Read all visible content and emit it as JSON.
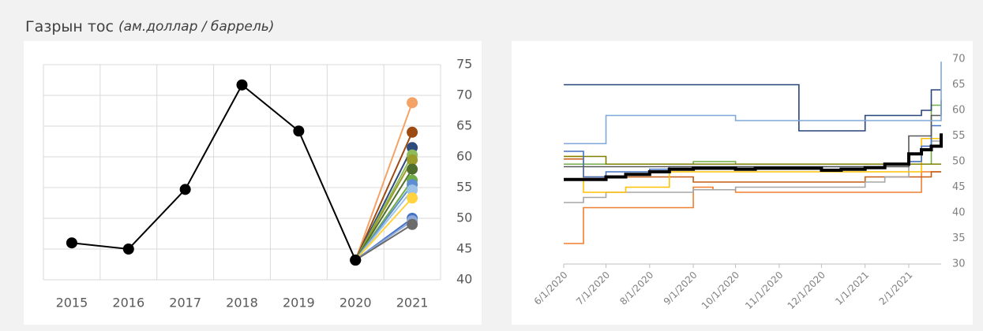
{
  "header": {
    "title": "Газрын тос",
    "unit": "(ам.доллар / баррель)"
  },
  "chart_data": [
    {
      "type": "line",
      "categories": [
        "2015",
        "2016",
        "2017",
        "2018",
        "2019",
        "2020",
        "2021"
      ],
      "ylim": [
        40,
        75
      ],
      "yticks": [
        40,
        45,
        50,
        55,
        60,
        65,
        70,
        75
      ],
      "grid": true,
      "series": [
        {
          "color": "#000000",
          "values": [
            46,
            45,
            54.7,
            71.7,
            64.2,
            43.2,
            null
          ]
        },
        {
          "color": "#f4a266",
          "values": [
            null,
            null,
            null,
            null,
            null,
            43.2,
            68.8
          ]
        },
        {
          "color": "#9c4a12",
          "values": [
            null,
            null,
            null,
            null,
            null,
            43.2,
            64
          ]
        },
        {
          "color": "#2f4b7c",
          "values": [
            null,
            null,
            null,
            null,
            null,
            43.2,
            61.5
          ]
        },
        {
          "color": "#8dbb5a",
          "values": [
            null,
            null,
            null,
            null,
            null,
            43.2,
            60.3
          ]
        },
        {
          "color": "#9c9c2a",
          "values": [
            null,
            null,
            null,
            null,
            null,
            43.2,
            59.5
          ]
        },
        {
          "color": "#4e6e2e",
          "values": [
            null,
            null,
            null,
            null,
            null,
            43.2,
            58
          ]
        },
        {
          "color": "#6fae44",
          "values": [
            null,
            null,
            null,
            null,
            null,
            43.2,
            56.2
          ]
        },
        {
          "color": "#5b8fd1",
          "values": [
            null,
            null,
            null,
            null,
            null,
            43.2,
            55.5
          ]
        },
        {
          "color": "#9dc3e6",
          "values": [
            null,
            null,
            null,
            null,
            null,
            43.2,
            54.6
          ]
        },
        {
          "color": "#ffd33f",
          "values": [
            null,
            null,
            null,
            null,
            null,
            43.2,
            53.3
          ]
        },
        {
          "color": "#4472c4",
          "values": [
            null,
            null,
            null,
            null,
            null,
            43.2,
            50
          ]
        },
        {
          "color": "#8da9db",
          "values": [
            null,
            null,
            null,
            null,
            null,
            43.2,
            49.6
          ]
        },
        {
          "color": "#6b6b6b",
          "values": [
            null,
            null,
            null,
            null,
            null,
            43.2,
            49
          ]
        }
      ]
    },
    {
      "type": "step",
      "xlim": [
        "6/1/2020",
        "2/24/2021"
      ],
      "xticks": [
        "6/1/2020",
        "7/1/2020",
        "8/1/2020",
        "9/1/2020",
        "10/1/2020",
        "11/1/2020",
        "12/1/2020",
        "1/1/2021",
        "2/1/2021"
      ],
      "ylim": [
        30,
        70
      ],
      "yticks": [
        30,
        35,
        40,
        45,
        50,
        55,
        60,
        65,
        70
      ],
      "x": [
        "6/1/2020",
        "6/15/2020",
        "7/1/2020",
        "7/15/2020",
        "8/1/2020",
        "8/15/2020",
        "9/1/2020",
        "9/15/2020",
        "10/1/2020",
        "10/15/2020",
        "11/1/2020",
        "11/15/2020",
        "12/1/2020",
        "12/15/2020",
        "1/1/2021",
        "1/15/2021",
        "2/1/2021",
        "2/10/2021",
        "2/17/2021",
        "2/24/2021"
      ],
      "series": [
        {
          "color": "#f07f2f",
          "values": [
            34,
            41,
            41,
            41,
            41,
            41,
            45,
            44.5,
            44,
            44,
            44,
            44,
            44,
            44,
            44,
            44,
            44,
            48,
            48,
            48
          ]
        },
        {
          "color": "#c55a11",
          "values": [
            50.5,
            47,
            47,
            47,
            47,
            47,
            46,
            46,
            46,
            46,
            46,
            46,
            46,
            46,
            47,
            47,
            47,
            47,
            48,
            48
          ]
        },
        {
          "color": "#a5a5a5",
          "values": [
            42,
            43,
            44,
            44,
            44,
            44,
            44.5,
            44.5,
            45,
            45,
            45,
            45,
            45,
            45,
            46,
            47,
            50,
            53,
            54,
            54
          ]
        },
        {
          "color": "#ffc000",
          "values": [
            51,
            44,
            44,
            45,
            45,
            48,
            48,
            48,
            48,
            48,
            48,
            48,
            48,
            48,
            48,
            48,
            48,
            54.5,
            54.5,
            54.5
          ]
        },
        {
          "color": "#70ad47",
          "values": [
            49.5,
            49.5,
            49.5,
            49.5,
            49.5,
            49.5,
            50,
            50,
            49.5,
            49.5,
            49.5,
            49.5,
            49.5,
            49.5,
            49.5,
            49.5,
            49.5,
            49.5,
            61,
            61
          ]
        },
        {
          "color": "#7f7f00",
          "values": [
            51,
            51,
            49.5,
            49.5,
            49.5,
            49.5,
            49.5,
            49.5,
            49.5,
            49.5,
            49.5,
            49.5,
            49.5,
            49.5,
            49.5,
            49.5,
            49.5,
            49.5,
            49.5,
            49.5
          ]
        },
        {
          "color": "#4472c4",
          "values": [
            52,
            47,
            48,
            48,
            48.5,
            49,
            49,
            49,
            49,
            49,
            49,
            49,
            49,
            49,
            49,
            49.5,
            50,
            53,
            57,
            57
          ]
        },
        {
          "color": "#595959",
          "values": [
            49,
            49,
            49,
            49,
            49,
            49,
            49,
            49,
            49,
            49,
            49,
            49,
            49,
            49,
            49,
            49,
            55,
            55,
            59,
            62
          ]
        },
        {
          "color": "#264478",
          "values": [
            65,
            65,
            65,
            65,
            65,
            65,
            65,
            65,
            65,
            65,
            65,
            56,
            56,
            56,
            59,
            59,
            59,
            60,
            64,
            64
          ]
        },
        {
          "color": "#7fa7d9",
          "values": [
            53.5,
            53.5,
            59,
            59,
            59,
            59,
            59,
            59,
            58,
            58,
            58,
            58,
            58,
            58,
            58,
            58,
            58,
            58,
            58,
            69.5
          ]
        },
        {
          "color": "#000000",
          "width": 4,
          "values": [
            46.5,
            46.5,
            47,
            47.5,
            48,
            48.5,
            48.7,
            48.7,
            48.5,
            48.7,
            48.7,
            48.7,
            48.3,
            48.5,
            48.8,
            49.5,
            51.5,
            52.3,
            53,
            55.5
          ]
        }
      ]
    }
  ]
}
